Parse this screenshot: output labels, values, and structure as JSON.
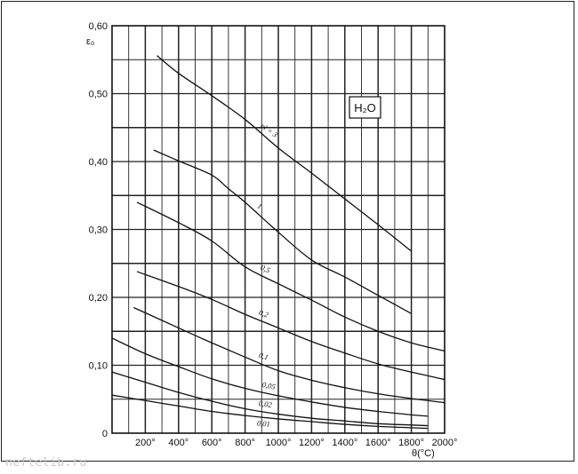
{
  "chart_data": {
    "type": "line",
    "title": "",
    "xlabel": "θ(°C)",
    "ylabel": "ε₀",
    "xlim": [
      0,
      2000
    ],
    "ylim": [
      0,
      0.6
    ],
    "xticks": [
      {
        "value": 200,
        "label": "200°"
      },
      {
        "value": 400,
        "label": "400°"
      },
      {
        "value": 600,
        "label": "600°"
      },
      {
        "value": 800,
        "label": "800°"
      },
      {
        "value": 1000,
        "label": "1000°"
      },
      {
        "value": 1200,
        "label": "1200°"
      },
      {
        "value": 1400,
        "label": "1400°"
      },
      {
        "value": 1600,
        "label": "1600°"
      },
      {
        "value": 1800,
        "label": "1800°"
      },
      {
        "value": 2000,
        "label": "2000°"
      }
    ],
    "yticks": [
      {
        "value": 0,
        "label": "0"
      },
      {
        "value": 0.1,
        "label": "0,10"
      },
      {
        "value": 0.2,
        "label": "0,20"
      },
      {
        "value": 0.3,
        "label": "0,30"
      },
      {
        "value": 0.4,
        "label": "0,40"
      },
      {
        "value": 0.5,
        "label": "0,50"
      },
      {
        "value": 0.6,
        "label": "0,60"
      }
    ],
    "grid": true,
    "annotation_box": "H₂O",
    "series": [
      {
        "name": "pl = 3",
        "x": [
          270,
          400,
          600,
          800,
          1000,
          1200,
          1400,
          1600,
          1800
        ],
        "y": [
          0.556,
          0.53,
          0.497,
          0.462,
          0.42,
          0.383,
          0.345,
          0.307,
          0.268
        ]
      },
      {
        "name": "1",
        "x": [
          250,
          400,
          600,
          700,
          800,
          1000,
          1200,
          1400,
          1600,
          1800
        ],
        "y": [
          0.417,
          0.401,
          0.38,
          0.36,
          0.34,
          0.296,
          0.255,
          0.23,
          0.203,
          0.176
        ]
      },
      {
        "name": "0,5",
        "x": [
          150,
          400,
          600,
          800,
          1000,
          1200,
          1400,
          1600,
          1800,
          2000
        ],
        "y": [
          0.34,
          0.31,
          0.283,
          0.245,
          0.22,
          0.196,
          0.171,
          0.15,
          0.133,
          0.121
        ]
      },
      {
        "name": "0,2",
        "x": [
          150,
          400,
          600,
          800,
          1000,
          1200,
          1400,
          1600,
          1800,
          2000
        ],
        "y": [
          0.238,
          0.216,
          0.197,
          0.175,
          0.155,
          0.135,
          0.118,
          0.102,
          0.09,
          0.079
        ]
      },
      {
        "name": "0,1",
        "x": [
          130,
          400,
          600,
          800,
          1000,
          1200,
          1400,
          1600,
          1800,
          2000
        ],
        "y": [
          0.185,
          0.155,
          0.133,
          0.112,
          0.092,
          0.078,
          0.067,
          0.058,
          0.051,
          0.045
        ]
      },
      {
        "name": "0,05",
        "x": [
          0,
          200,
          400,
          600,
          800,
          1000,
          1200,
          1400,
          1600,
          1800,
          1900
        ],
        "y": [
          0.14,
          0.117,
          0.098,
          0.08,
          0.066,
          0.055,
          0.046,
          0.038,
          0.032,
          0.027,
          0.025
        ]
      },
      {
        "name": "0,02",
        "x": [
          0,
          200,
          400,
          600,
          800,
          1000,
          1200,
          1400,
          1600,
          1800,
          1900
        ],
        "y": [
          0.09,
          0.075,
          0.06,
          0.047,
          0.036,
          0.028,
          0.022,
          0.018,
          0.014,
          0.012,
          0.011
        ]
      },
      {
        "name": "0,01",
        "x": [
          0,
          200,
          400,
          600,
          800,
          1000,
          1200,
          1400,
          1600,
          1800,
          1900
        ],
        "y": [
          0.056,
          0.048,
          0.04,
          0.032,
          0.026,
          0.021,
          0.017,
          0.013,
          0.01,
          0.008,
          0.007
        ]
      }
    ]
  },
  "watermark": "neftelib.ru"
}
